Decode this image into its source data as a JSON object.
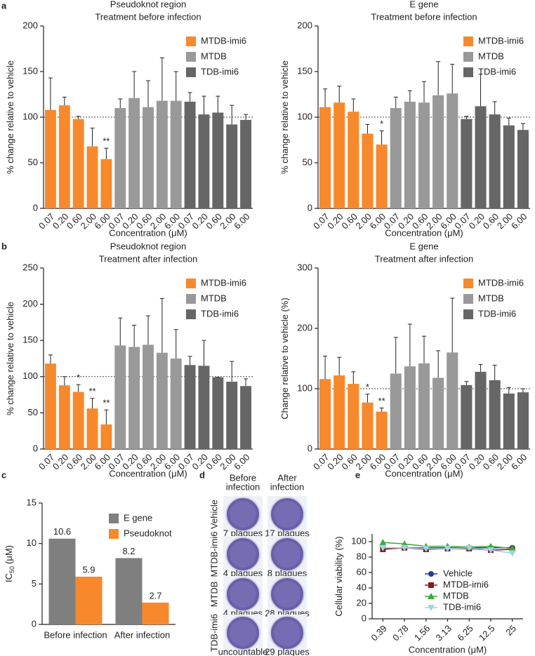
{
  "panel_labels": [
    "a",
    "b",
    "c",
    "d",
    "e"
  ],
  "chart_data": [
    {
      "type": "bar",
      "title": "Pseudoknot region",
      "subtitle": "Treatment before infection",
      "ylabel": "% change relative to vehicle",
      "xlabel": "Concentration (μM)",
      "ylim": [
        0,
        200
      ],
      "yticks": [
        0,
        50,
        100,
        150,
        200
      ],
      "reference_line": 100,
      "legend": "upper right",
      "categories": [
        "0.07",
        "0.20",
        "0.60",
        "2.00",
        "6.00",
        "0.07",
        "0.20",
        "0.60",
        "2.00",
        "6.00",
        "0.07",
        "0.20",
        "0.60",
        "2.00",
        "6.00"
      ],
      "series": [
        {
          "name": "MTDB-imi6",
          "color": "#f7892c",
          "values": [
            108,
            113,
            98,
            68,
            54,
            null,
            null,
            null,
            null,
            null,
            null,
            null,
            null,
            null,
            null
          ],
          "errors": [
            35,
            9,
            3,
            20,
            12,
            null,
            null,
            null,
            null,
            null,
            null,
            null,
            null,
            null,
            null
          ]
        },
        {
          "name": "MTDB",
          "color": "#999999",
          "values": [
            null,
            null,
            null,
            null,
            null,
            110,
            121,
            111,
            118,
            118,
            null,
            null,
            null,
            null,
            null
          ],
          "errors": [
            null,
            null,
            null,
            null,
            null,
            10,
            29,
            29,
            47,
            32,
            null,
            null,
            null,
            null,
            null
          ]
        },
        {
          "name": "TDB-imi6",
          "color": "#666666",
          "values": [
            null,
            null,
            null,
            null,
            null,
            null,
            null,
            null,
            null,
            null,
            117,
            103,
            105,
            92,
            97
          ],
          "errors": [
            null,
            null,
            null,
            null,
            null,
            null,
            null,
            null,
            null,
            null,
            10,
            20,
            18,
            21,
            6
          ]
        }
      ],
      "significance": [
        null,
        null,
        null,
        null,
        "**",
        null,
        null,
        null,
        null,
        null,
        null,
        null,
        null,
        null,
        null
      ]
    },
    {
      "type": "bar",
      "title": "E gene",
      "subtitle": "Treatment before infection",
      "ylabel": "% change relative to vehicle",
      "xlabel": "Concentration (μM)",
      "ylim": [
        0,
        200
      ],
      "yticks": [
        0,
        50,
        100,
        150,
        200
      ],
      "reference_line": 100,
      "legend": "upper right",
      "categories": [
        "0.07",
        "0.20",
        "0.60",
        "2.00",
        "6.00",
        "0.07",
        "0.20",
        "0.60",
        "2.00",
        "6.00",
        "0.07",
        "0.20",
        "0.60",
        "2.00",
        "6.00"
      ],
      "series": [
        {
          "name": "MTDB-imi6",
          "color": "#f7892c",
          "values": [
            111,
            116,
            106,
            82,
            70,
            null,
            null,
            null,
            null,
            null,
            null,
            null,
            null,
            null,
            null
          ],
          "errors": [
            20,
            18,
            14,
            10,
            15,
            null,
            null,
            null,
            null,
            null,
            null,
            null,
            null,
            null,
            null
          ]
        },
        {
          "name": "MTDB",
          "color": "#999999",
          "values": [
            null,
            null,
            null,
            null,
            null,
            110,
            117,
            116,
            124,
            126,
            null,
            null,
            null,
            null,
            null
          ],
          "errors": [
            null,
            null,
            null,
            null,
            null,
            12,
            12,
            23,
            37,
            32,
            null,
            null,
            null,
            null,
            null
          ]
        },
        {
          "name": "TDB-imi6",
          "color": "#666666",
          "values": [
            null,
            null,
            null,
            null,
            null,
            null,
            null,
            null,
            null,
            null,
            98,
            112,
            103,
            91,
            86
          ],
          "errors": [
            null,
            null,
            null,
            null,
            null,
            null,
            null,
            null,
            null,
            null,
            3,
            35,
            14,
            8,
            7
          ]
        }
      ],
      "significance": [
        null,
        null,
        null,
        null,
        "*",
        null,
        null,
        null,
        null,
        null,
        null,
        null,
        null,
        null,
        null
      ]
    },
    {
      "type": "bar",
      "title": "Pseudoknot region",
      "subtitle": "Treatment after infection",
      "ylabel": "% change relative to vehicle",
      "xlabel": "Concentration (μM)",
      "ylim": [
        0,
        250
      ],
      "yticks": [
        0,
        50,
        100,
        150,
        200,
        250
      ],
      "reference_line": 100,
      "legend": "upper right",
      "categories": [
        "0.07",
        "0.20",
        "0.60",
        "2.00",
        "6.00",
        "0.07",
        "0.20",
        "0.60",
        "2.00",
        "6.00",
        "0.07",
        "0.20",
        "0.60",
        "2.00",
        "6.00"
      ],
      "series": [
        {
          "name": "MTDB-imi6",
          "color": "#f7892c",
          "values": [
            118,
            88,
            79,
            56,
            34,
            null,
            null,
            null,
            null,
            null,
            null,
            null,
            null,
            null,
            null
          ],
          "errors": [
            12,
            12,
            10,
            14,
            20,
            null,
            null,
            null,
            null,
            null,
            null,
            null,
            null,
            null,
            null
          ]
        },
        {
          "name": "MTDB",
          "color": "#999999",
          "values": [
            null,
            null,
            null,
            null,
            null,
            143,
            141,
            144,
            133,
            125,
            null,
            null,
            null,
            null,
            null
          ],
          "errors": [
            null,
            null,
            null,
            null,
            null,
            38,
            30,
            40,
            75,
            40,
            null,
            null,
            null,
            null,
            null
          ]
        },
        {
          "name": "TDB-imi6",
          "color": "#666666",
          "values": [
            null,
            null,
            null,
            null,
            null,
            null,
            null,
            null,
            null,
            null,
            116,
            115,
            99,
            93,
            87
          ],
          "errors": [
            null,
            null,
            null,
            null,
            null,
            null,
            null,
            null,
            null,
            null,
            12,
            35,
            0,
            28,
            10
          ]
        }
      ],
      "significance": [
        null,
        null,
        "*",
        "**",
        "**",
        null,
        null,
        null,
        null,
        null,
        null,
        null,
        null,
        null,
        null
      ]
    },
    {
      "type": "bar",
      "title": "E gene",
      "subtitle": "Treatment after infection",
      "ylabel": "Change relative to vehicle (%)",
      "xlabel": "Concentration (μM)",
      "ylim": [
        0,
        300
      ],
      "yticks": [
        0,
        100,
        200,
        300
      ],
      "reference_line": 100,
      "legend": "upper right",
      "categories": [
        "0.07",
        "0.20",
        "0.60",
        "2.00",
        "6.00",
        "0.07",
        "0.20",
        "0.60",
        "2.00",
        "6.00",
        "0.07",
        "0.20",
        "0.60",
        "2.00",
        "6.00"
      ],
      "series": [
        {
          "name": "MTDB-imi6",
          "color": "#f7892c",
          "values": [
            116,
            122,
            108,
            77,
            62,
            null,
            null,
            null,
            null,
            null,
            null,
            null,
            null,
            null,
            null
          ],
          "errors": [
            38,
            30,
            20,
            14,
            6,
            null,
            null,
            null,
            null,
            null,
            null,
            null,
            null,
            null,
            null
          ]
        },
        {
          "name": "MTDB",
          "color": "#999999",
          "values": [
            null,
            null,
            null,
            null,
            null,
            125,
            137,
            142,
            118,
            160,
            null,
            null,
            null,
            null,
            null
          ],
          "errors": [
            null,
            null,
            null,
            null,
            null,
            60,
            70,
            45,
            45,
            90,
            null,
            null,
            null,
            null,
            null
          ]
        },
        {
          "name": "TDB-imi6",
          "color": "#666666",
          "values": [
            null,
            null,
            null,
            null,
            null,
            null,
            null,
            null,
            null,
            null,
            106,
            128,
            114,
            92,
            94
          ],
          "errors": [
            null,
            null,
            null,
            null,
            null,
            null,
            null,
            null,
            null,
            null,
            6,
            12,
            25,
            10,
            6
          ]
        }
      ],
      "significance": [
        null,
        null,
        null,
        "*",
        "**",
        null,
        null,
        null,
        null,
        null,
        null,
        null,
        null,
        null,
        null
      ]
    },
    {
      "type": "bar",
      "ylabel": "IC",
      "ylabel_sub": "50",
      "ylabel_unit": "(μM)",
      "ylim": [
        0,
        15
      ],
      "yticks": [
        0,
        5,
        10,
        15
      ],
      "legend": "upper right",
      "show_values": true,
      "categories": [
        "Before infection",
        "After infection"
      ],
      "series": [
        {
          "name": "E gene",
          "color": "#7f7f7f",
          "values": [
            10.6,
            8.2
          ]
        },
        {
          "name": "Pseudoknot",
          "color": "#f7892c",
          "values": [
            5.9,
            2.7
          ]
        }
      ]
    },
    {
      "type": "line",
      "ylabel": "Cellular viability (%)",
      "xlabel": "Concentration (μM)",
      "ylim": [
        0,
        110
      ],
      "yticks": [
        0,
        20,
        40,
        60,
        80,
        100
      ],
      "legend": "lower right",
      "categories": [
        "0.39",
        "0.78",
        "1.56",
        "3.13",
        "6.25",
        "12.5",
        "25"
      ],
      "series": [
        {
          "name": "Vehicle",
          "color": "#2b3a9a",
          "marker": "circle",
          "values": [
            91,
            92,
            92,
            92,
            92,
            92,
            92
          ]
        },
        {
          "name": "MTDB-imi6",
          "color": "#8b1a1a",
          "marker": "square",
          "values": [
            90,
            92,
            90,
            91,
            91,
            89,
            90
          ]
        },
        {
          "name": "MTDB",
          "color": "#3aaa35",
          "marker": "triangle",
          "values": [
            99,
            97,
            94,
            94,
            93,
            94,
            91
          ]
        },
        {
          "name": "TDB-imi6",
          "color": "#9fd3e6",
          "marker": "triangle-down",
          "values": [
            92,
            92,
            91,
            91,
            92,
            89,
            85
          ]
        }
      ]
    }
  ],
  "plaque_assay": {
    "columns": [
      [
        "Before",
        "infection"
      ],
      [
        "After",
        "infection"
      ]
    ],
    "rows": [
      {
        "label": "Vehicle",
        "captions": [
          "7 plaques",
          "17 plaques"
        ]
      },
      {
        "label": "MTDB-imi6",
        "captions": [
          "4 plaques",
          "8 plaques"
        ]
      },
      {
        "label": "MTDB",
        "captions": [
          "4 plaques",
          "28 plaques"
        ]
      },
      {
        "label": "TDB-imi6",
        "captions": [
          "uncountable",
          "29 plaques"
        ]
      }
    ]
  }
}
